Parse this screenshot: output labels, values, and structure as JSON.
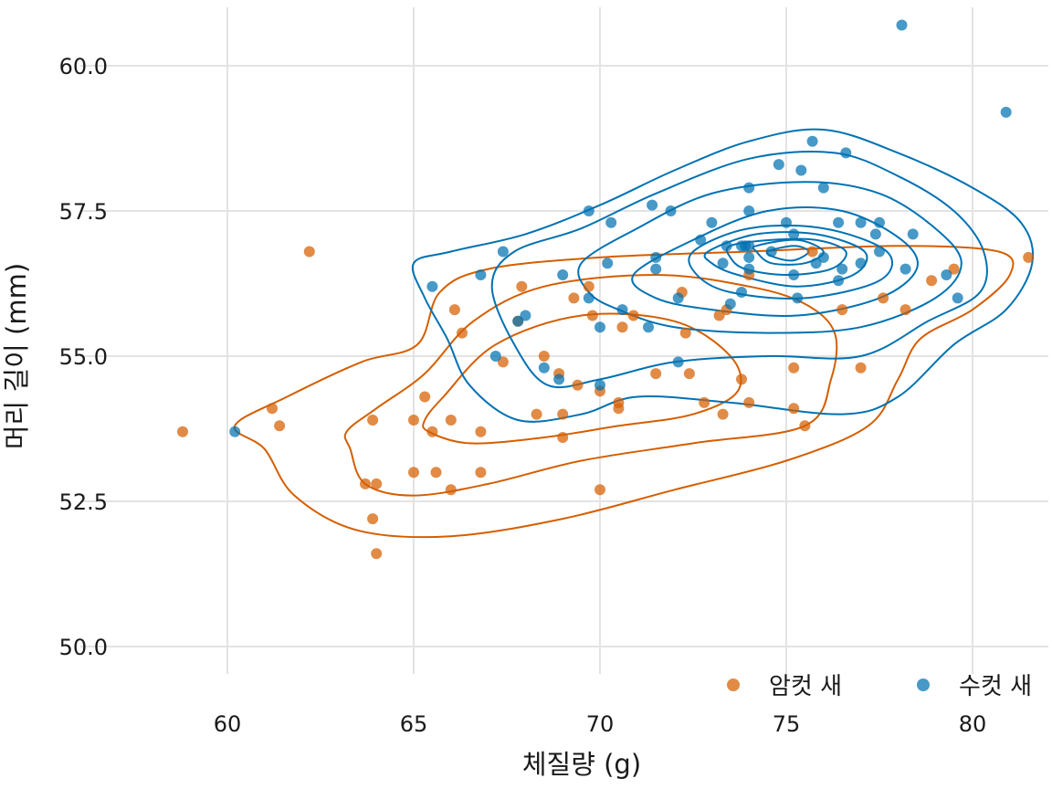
{
  "chart_data": {
    "type": "scatter",
    "title": "",
    "xlabel": "체질량 (g)",
    "ylabel": "머리 길이 (mm)",
    "xlim": [
      56.6,
      82.0
    ],
    "ylim": [
      49.2,
      61.0
    ],
    "xticks": [
      60,
      65,
      70,
      75,
      80
    ],
    "xtick_labels": [
      "60",
      "65",
      "70",
      "75",
      "80"
    ],
    "yticks": [
      50.0,
      52.5,
      55.0,
      57.5,
      60.0
    ],
    "ytick_labels": [
      "50.0",
      "52.5",
      "55.0",
      "57.5",
      "60.0"
    ],
    "grid": true,
    "legend_position": "bottom-right",
    "series": [
      {
        "name": "암컷 새",
        "color": "#d55e00",
        "points": [
          [
            58.8,
            53.7
          ],
          [
            61.2,
            54.1
          ],
          [
            61.4,
            53.8
          ],
          [
            62.2,
            56.8
          ],
          [
            63.7,
            52.8
          ],
          [
            63.9,
            53.9
          ],
          [
            63.9,
            52.2
          ],
          [
            64.0,
            52.8
          ],
          [
            64.0,
            51.6
          ],
          [
            65.0,
            53.9
          ],
          [
            65.0,
            53.0
          ],
          [
            65.3,
            54.3
          ],
          [
            65.5,
            53.7
          ],
          [
            65.6,
            53.0
          ],
          [
            66.0,
            53.9
          ],
          [
            66.0,
            52.7
          ],
          [
            66.1,
            55.8
          ],
          [
            66.3,
            55.4
          ],
          [
            66.8,
            53.0
          ],
          [
            66.8,
            53.7
          ],
          [
            67.4,
            54.9
          ],
          [
            67.8,
            55.6
          ],
          [
            67.9,
            56.2
          ],
          [
            68.3,
            54.0
          ],
          [
            68.5,
            55.0
          ],
          [
            68.9,
            54.7
          ],
          [
            69.0,
            54.0
          ],
          [
            69.0,
            53.6
          ],
          [
            69.3,
            56.0
          ],
          [
            69.4,
            54.5
          ],
          [
            69.7,
            56.2
          ],
          [
            69.8,
            55.7
          ],
          [
            70.0,
            54.4
          ],
          [
            70.0,
            52.7
          ],
          [
            70.5,
            54.2
          ],
          [
            70.5,
            54.1
          ],
          [
            70.6,
            55.5
          ],
          [
            70.9,
            55.7
          ],
          [
            71.5,
            54.7
          ],
          [
            72.2,
            56.1
          ],
          [
            72.3,
            55.4
          ],
          [
            72.4,
            54.7
          ],
          [
            72.8,
            54.2
          ],
          [
            73.2,
            55.7
          ],
          [
            73.3,
            54.0
          ],
          [
            73.4,
            55.8
          ],
          [
            73.8,
            54.6
          ],
          [
            74.0,
            54.2
          ],
          [
            74.0,
            56.4
          ],
          [
            75.2,
            54.8
          ],
          [
            75.2,
            54.1
          ],
          [
            75.5,
            53.8
          ],
          [
            75.7,
            56.8
          ],
          [
            76.5,
            55.8
          ],
          [
            77.0,
            54.8
          ],
          [
            77.6,
            56.0
          ],
          [
            78.2,
            55.8
          ],
          [
            78.9,
            56.3
          ],
          [
            79.5,
            56.5
          ],
          [
            81.5,
            56.7
          ]
        ],
        "density_levels": [
          [
            [
              61,
              53.4
            ],
            [
              61.8,
              52.6
            ],
            [
              63.5,
              52.0
            ],
            [
              66,
              51.9
            ],
            [
              69,
              52.2
            ],
            [
              72,
              52.7
            ],
            [
              75,
              53.2
            ],
            [
              77.2,
              53.8
            ],
            [
              78,
              54.6
            ],
            [
              78.6,
              55.3
            ],
            [
              80,
              55.8
            ],
            [
              81,
              56.4
            ],
            [
              80.7,
              56.8
            ],
            [
              78,
              56.9
            ],
            [
              74,
              56.8
            ],
            [
              70,
              56.7
            ],
            [
              67,
              56.5
            ],
            [
              65.7,
              56.1
            ],
            [
              65.1,
              55.2
            ],
            [
              63.6,
              54.9
            ],
            [
              61.6,
              54.3
            ],
            [
              60.2,
              53.8
            ]
          ],
          [
            [
              63.3,
              53.4
            ],
            [
              63.7,
              52.8
            ],
            [
              65,
              52.6
            ],
            [
              67,
              52.8
            ],
            [
              69.5,
              53.2
            ],
            [
              72.5,
              53.5
            ],
            [
              75.5,
              53.8
            ],
            [
              76.2,
              54.6
            ],
            [
              76.3,
              55.4
            ],
            [
              75.5,
              55.9
            ],
            [
              74,
              56.2
            ],
            [
              71.5,
              56.4
            ],
            [
              68.5,
              56.2
            ],
            [
              66.6,
              55.6
            ],
            [
              65.3,
              54.7
            ],
            [
              64,
              54.1
            ],
            [
              63.2,
              53.7
            ]
          ],
          [
            [
              65.4,
              53.7
            ],
            [
              66.5,
              53.5
            ],
            [
              68.5,
              53.6
            ],
            [
              70.5,
              53.8
            ],
            [
              72.5,
              54.0
            ],
            [
              73.7,
              54.4
            ],
            [
              73.5,
              55.0
            ],
            [
              72,
              55.6
            ],
            [
              69.5,
              55.7
            ],
            [
              67.2,
              55.2
            ],
            [
              65.8,
              54.3
            ],
            [
              65.3,
              53.9
            ]
          ]
        ]
      },
      {
        "name": "수컷 새",
        "color": "#0072b2",
        "points": [
          [
            60.2,
            53.7
          ],
          [
            65.5,
            56.2
          ],
          [
            66.8,
            56.4
          ],
          [
            67.2,
            55.0
          ],
          [
            67.4,
            56.8
          ],
          [
            67.8,
            55.6
          ],
          [
            68.0,
            55.7
          ],
          [
            68.5,
            54.8
          ],
          [
            68.9,
            54.6
          ],
          [
            69.0,
            56.4
          ],
          [
            69.7,
            57.5
          ],
          [
            69.7,
            56.0
          ],
          [
            70.0,
            55.5
          ],
          [
            70.0,
            54.5
          ],
          [
            70.2,
            56.6
          ],
          [
            70.3,
            57.3
          ],
          [
            70.6,
            55.8
          ],
          [
            71.3,
            55.5
          ],
          [
            71.4,
            57.6
          ],
          [
            71.5,
            56.7
          ],
          [
            71.5,
            56.5
          ],
          [
            71.9,
            57.5
          ],
          [
            72.1,
            56.0
          ],
          [
            72.1,
            54.9
          ],
          [
            72.7,
            57.0
          ],
          [
            73.0,
            57.3
          ],
          [
            73.3,
            56.6
          ],
          [
            73.4,
            56.9
          ],
          [
            73.5,
            55.9
          ],
          [
            73.8,
            56.9
          ],
          [
            73.8,
            56.1
          ],
          [
            73.9,
            56.9
          ],
          [
            74.0,
            57.9
          ],
          [
            74.0,
            57.5
          ],
          [
            74.0,
            56.9
          ],
          [
            74.0,
            56.7
          ],
          [
            74.0,
            56.5
          ],
          [
            74.6,
            56.8
          ],
          [
            74.8,
            58.3
          ],
          [
            75.0,
            57.3
          ],
          [
            75.2,
            57.1
          ],
          [
            75.2,
            56.4
          ],
          [
            75.3,
            56.0
          ],
          [
            75.4,
            58.2
          ],
          [
            75.7,
            58.7
          ],
          [
            75.8,
            56.6
          ],
          [
            76.0,
            57.9
          ],
          [
            76.0,
            56.7
          ],
          [
            76.4,
            57.3
          ],
          [
            76.4,
            56.3
          ],
          [
            76.5,
            56.5
          ],
          [
            76.6,
            58.5
          ],
          [
            77.0,
            57.3
          ],
          [
            77.0,
            56.6
          ],
          [
            77.4,
            57.1
          ],
          [
            77.5,
            57.3
          ],
          [
            77.5,
            56.8
          ],
          [
            78.1,
            60.7
          ],
          [
            78.2,
            56.5
          ],
          [
            78.4,
            57.1
          ],
          [
            79.3,
            56.4
          ],
          [
            79.6,
            56.0
          ],
          [
            80.9,
            59.2
          ]
        ],
        "density_levels": [
          [
            [
              65,
              56.6
            ],
            [
              66,
              56.8
            ],
            [
              68,
              57.1
            ],
            [
              70,
              57.6
            ],
            [
              72,
              58.2
            ],
            [
              74,
              58.7
            ],
            [
              76,
              58.9
            ],
            [
              78,
              58.5
            ],
            [
              80,
              57.9
            ],
            [
              81.3,
              57.3
            ],
            [
              81.6,
              56.6
            ],
            [
              80.9,
              55.8
            ],
            [
              79.5,
              55.2
            ],
            [
              78,
              54.3
            ],
            [
              76.5,
              54.0
            ],
            [
              73.5,
              54.2
            ],
            [
              71,
              54.3
            ],
            [
              69.5,
              54.0
            ],
            [
              67.8,
              53.9
            ],
            [
              66.5,
              54.5
            ],
            [
              65.9,
              55.3
            ],
            [
              65.3,
              56.0
            ]
          ],
          [
            [
              67.7,
              56.8
            ],
            [
              69.5,
              57.2
            ],
            [
              71.5,
              57.8
            ],
            [
              74,
              58.4
            ],
            [
              76.3,
              58.5
            ],
            [
              78,
              58.1
            ],
            [
              79.5,
              57.5
            ],
            [
              80.3,
              56.8
            ],
            [
              80.2,
              56.1
            ],
            [
              78.8,
              55.6
            ],
            [
              77,
              55.0
            ],
            [
              74.5,
              55.0
            ],
            [
              72,
              54.9
            ],
            [
              70,
              54.6
            ],
            [
              68.6,
              54.5
            ],
            [
              67.7,
              55.2
            ],
            [
              67.1,
              56.2
            ]
          ],
          [
            [
              69.5,
              56.6
            ],
            [
              71,
              57.2
            ],
            [
              73,
              57.8
            ],
            [
              75.5,
              58.0
            ],
            [
              77.5,
              57.8
            ],
            [
              79,
              57.2
            ],
            [
              79.7,
              56.6
            ],
            [
              79,
              56.0
            ],
            [
              77,
              55.5
            ],
            [
              74.5,
              55.4
            ],
            [
              72,
              55.5
            ],
            [
              70.5,
              55.8
            ],
            [
              69.7,
              56.1
            ]
          ],
          [
            [
              70.9,
              56.4
            ],
            [
              72.5,
              57.0
            ],
            [
              74.5,
              57.5
            ],
            [
              76.5,
              57.5
            ],
            [
              78.1,
              57.0
            ],
            [
              78.5,
              56.5
            ],
            [
              77.5,
              56.0
            ],
            [
              75.3,
              55.7
            ],
            [
              73,
              55.8
            ],
            [
              71.5,
              56.0
            ]
          ],
          [
            [
              72.5,
              56.8
            ],
            [
              74,
              57.2
            ],
            [
              76,
              57.2
            ],
            [
              77.7,
              56.8
            ],
            [
              77.5,
              56.3
            ],
            [
              75.5,
              56.0
            ],
            [
              73.5,
              56.1
            ],
            [
              72.6,
              56.4
            ]
          ],
          [
            [
              72.9,
              56.8
            ],
            [
              74.2,
              57.1
            ],
            [
              75.8,
              57.1
            ],
            [
              77.1,
              56.8
            ],
            [
              76.8,
              56.4
            ],
            [
              75.3,
              56.2
            ],
            [
              73.7,
              56.4
            ],
            [
              73.0,
              56.6
            ]
          ],
          [
            [
              73.5,
              56.9
            ],
            [
              74.6,
              57.0
            ],
            [
              75.8,
              57.0
            ],
            [
              76.6,
              56.8
            ],
            [
              76.2,
              56.5
            ],
            [
              75,
              56.4
            ],
            [
              73.9,
              56.5
            ],
            [
              73.5,
              56.7
            ]
          ],
          [
            [
              74.2,
              56.9
            ],
            [
              75.3,
              57.0
            ],
            [
              76.0,
              56.8
            ],
            [
              75.5,
              56.6
            ],
            [
              74.6,
              56.6
            ],
            [
              74.2,
              56.8
            ]
          ],
          [
            [
              74.5,
              56.8
            ],
            [
              75.2,
              56.9
            ],
            [
              75.6,
              56.8
            ],
            [
              75.2,
              56.65
            ],
            [
              74.7,
              56.7
            ]
          ]
        ]
      }
    ]
  }
}
